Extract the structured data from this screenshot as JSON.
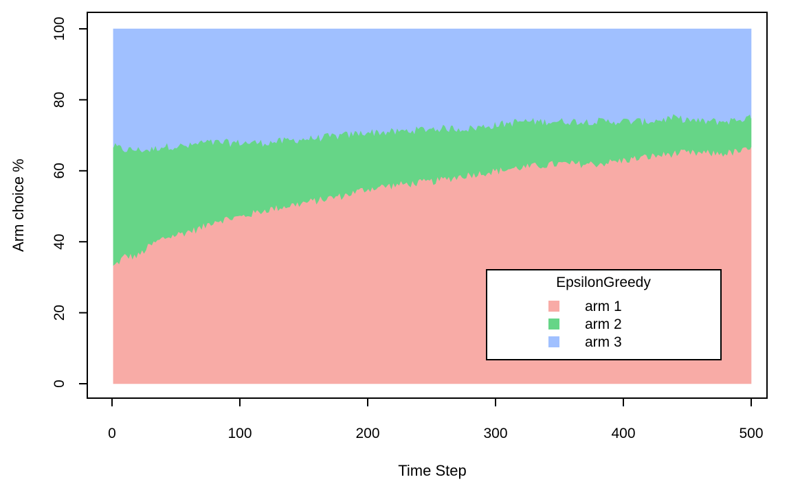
{
  "chart_data": {
    "type": "area",
    "stacked": true,
    "xlabel": "Time Step",
    "ylabel": "Arm choice %",
    "xlim": [
      0,
      500
    ],
    "ylim": [
      0,
      100
    ],
    "x_ticks": [
      0,
      100,
      200,
      300,
      400,
      500
    ],
    "y_ticks": [
      0,
      20,
      40,
      60,
      80,
      100
    ],
    "grid": false,
    "legend": {
      "title": "EpsilonGreedy",
      "position": "bottom-right",
      "entries": [
        "arm 1",
        "arm 2",
        "arm 3"
      ]
    },
    "x": [
      1,
      10,
      20,
      30,
      40,
      50,
      60,
      70,
      80,
      100,
      120,
      150,
      180,
      200,
      220,
      250,
      280,
      300,
      320,
      350,
      380,
      400,
      420,
      440,
      460,
      480,
      500
    ],
    "series": [
      {
        "name": "arm 1",
        "color": "#f8aba6",
        "values": [
          33,
          36,
          36,
          39,
          41,
          42,
          43,
          44,
          46,
          47,
          49,
          51,
          53,
          55,
          56,
          57,
          59,
          60,
          61,
          62,
          62,
          63,
          64,
          65,
          65,
          65,
          66
        ]
      },
      {
        "name": "arm 2",
        "color": "#66d587",
        "values": [
          34,
          30,
          30,
          27,
          26,
          25,
          24,
          24,
          22,
          21,
          19,
          18,
          17,
          16,
          15,
          15,
          13,
          13,
          13,
          12,
          12,
          11,
          10,
          10,
          9,
          9,
          9
        ]
      },
      {
        "name": "arm 3",
        "color": "#a0c0ff",
        "values": [
          33,
          34,
          34,
          34,
          33,
          33,
          33,
          32,
          32,
          32,
          32,
          31,
          30,
          29,
          29,
          28,
          28,
          27,
          26,
          26,
          26,
          26,
          26,
          25,
          26,
          26,
          25
        ]
      }
    ]
  }
}
